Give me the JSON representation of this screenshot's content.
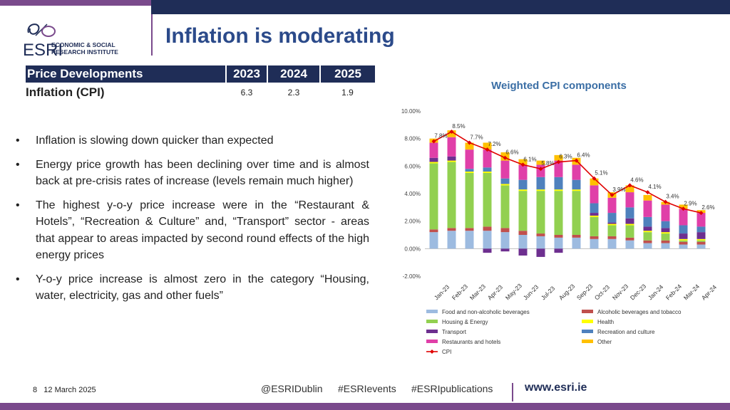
{
  "slide": {
    "title": "Inflation is moderating",
    "page_number": "8",
    "date": "12 March 2025",
    "logo_text_line1": "ECONOMIC & SOCIAL",
    "logo_text_line2": "RESEARCH INSTITUTE",
    "logo_wordmark": "ESRI"
  },
  "price_table": {
    "header": [
      "Price Developments",
      "2023",
      "2024",
      "2025"
    ],
    "row_label": "Inflation (CPI)",
    "row_values": [
      "6.3",
      "2.3",
      "1.9"
    ]
  },
  "bullets": [
    "Inflation is slowing down quicker than expected",
    "Energy price growth has been declining over time and is almost back at pre-crisis rates of increase (levels remain much higher)",
    "The highest y-o-y price increase were in the “Restaurant & Hotels”, “Recreation & Culture” and, “Transport” sector - areas that appear to areas impacted by second round effects of the high energy prices",
    "Y-o-y price increase is almost zero in the category “Housing, water, electricity, gas and other fuels”"
  ],
  "footer": {
    "twitter": "@ESRIDublin",
    "hashtag1": "#ESRIevents",
    "hashtag2": "#ESRIpublications",
    "website": "www.esri.ie"
  },
  "colors": {
    "navy": "#1f2d57",
    "purple": "#7a4a8c",
    "title_blue": "#2b4a8a"
  },
  "chart_data": {
    "type": "bar",
    "stacked": true,
    "title": "Weighted CPI components",
    "ylim": [
      -2.0,
      10.0
    ],
    "yticks": [
      "-2.00%",
      "0.00%",
      "2.00%",
      "4.00%",
      "6.00%",
      "8.00%",
      "10.00%"
    ],
    "ytick_values": [
      -2,
      0,
      2,
      4,
      6,
      8,
      10
    ],
    "categories": [
      "Jan-23",
      "Feb-23",
      "Mar-23",
      "Apr-23",
      "May-23",
      "Jun-23",
      "Jul-23",
      "Aug-23",
      "Sep-23",
      "Oct-23",
      "Nov-23",
      "Dec-23",
      "Jan-24",
      "Feb-24",
      "Mar-24",
      "Apr-24"
    ],
    "legend_position": "bottom",
    "series": [
      {
        "name": "Food and non-alcoholic beverages",
        "color": "#9dbbe0",
        "values": [
          1.2,
          1.3,
          1.3,
          1.3,
          1.2,
          1.0,
          0.9,
          0.8,
          0.8,
          0.7,
          0.7,
          0.6,
          0.4,
          0.4,
          0.3,
          0.3
        ]
      },
      {
        "name": "Alcoholic beverages and tobacco",
        "color": "#c0504d",
        "values": [
          0.2,
          0.2,
          0.2,
          0.3,
          0.3,
          0.3,
          0.2,
          0.2,
          0.2,
          0.2,
          0.2,
          0.2,
          0.2,
          0.2,
          0.2,
          0.2
        ]
      },
      {
        "name": "Housing & Energy",
        "color": "#92d050",
        "values": [
          4.8,
          4.8,
          4.0,
          3.9,
          3.1,
          2.9,
          3.1,
          3.2,
          3.2,
          1.4,
          0.8,
          0.9,
          0.6,
          0.5,
          0.1,
          0.1
        ]
      },
      {
        "name": "Health",
        "color": "#ffff00",
        "values": [
          0.1,
          0.1,
          0.1,
          0.1,
          0.1,
          0.1,
          0.1,
          0.1,
          0.1,
          0.1,
          0.1,
          0.1,
          0.1,
          0.1,
          0.1,
          0.1
        ]
      },
      {
        "name": "Transport",
        "color": "#6d2f8f",
        "values": [
          0.3,
          0.3,
          0.0,
          -0.3,
          -0.2,
          -0.5,
          -0.6,
          -0.3,
          0.0,
          0.2,
          0.1,
          0.4,
          0.3,
          0.3,
          0.4,
          0.5
        ]
      },
      {
        "name": "Recreation and culture",
        "color": "#4f81bd",
        "values": [
          0.0,
          0.0,
          0.2,
          0.3,
          0.4,
          0.7,
          0.9,
          0.9,
          0.7,
          0.7,
          0.7,
          0.8,
          0.7,
          0.5,
          0.6,
          0.4
        ]
      },
      {
        "name": "Restaurants and hotels",
        "color": "#e03fa8",
        "values": [
          1.1,
          1.4,
          1.4,
          1.3,
          1.3,
          1.1,
          0.9,
          1.2,
          1.1,
          1.3,
          1.1,
          1.1,
          1.2,
          1.2,
          1.2,
          1.0
        ]
      },
      {
        "name": "Other",
        "color": "#ffc000",
        "values": [
          0.3,
          0.5,
          0.5,
          0.5,
          0.6,
          0.4,
          0.3,
          0.4,
          0.5,
          0.5,
          0.4,
          0.5,
          0.4,
          0.2,
          0.3,
          0.2
        ]
      }
    ],
    "line": {
      "name": "CPI",
      "color": "#e00000",
      "values": [
        7.8,
        8.5,
        7.7,
        7.2,
        6.6,
        6.1,
        5.8,
        6.3,
        6.4,
        5.1,
        3.9,
        4.6,
        4.1,
        3.4,
        2.9,
        2.6
      ],
      "labels": [
        "7.8%",
        "8.5%",
        "7.7%",
        "7.2%",
        "6.6%",
        "6.1%",
        "5.8%",
        "6.3%",
        "6.4%",
        "5.1%",
        "3.9%",
        "4.6%",
        "4.1%",
        "3.4%",
        "2.9%",
        "2.6%"
      ]
    }
  }
}
